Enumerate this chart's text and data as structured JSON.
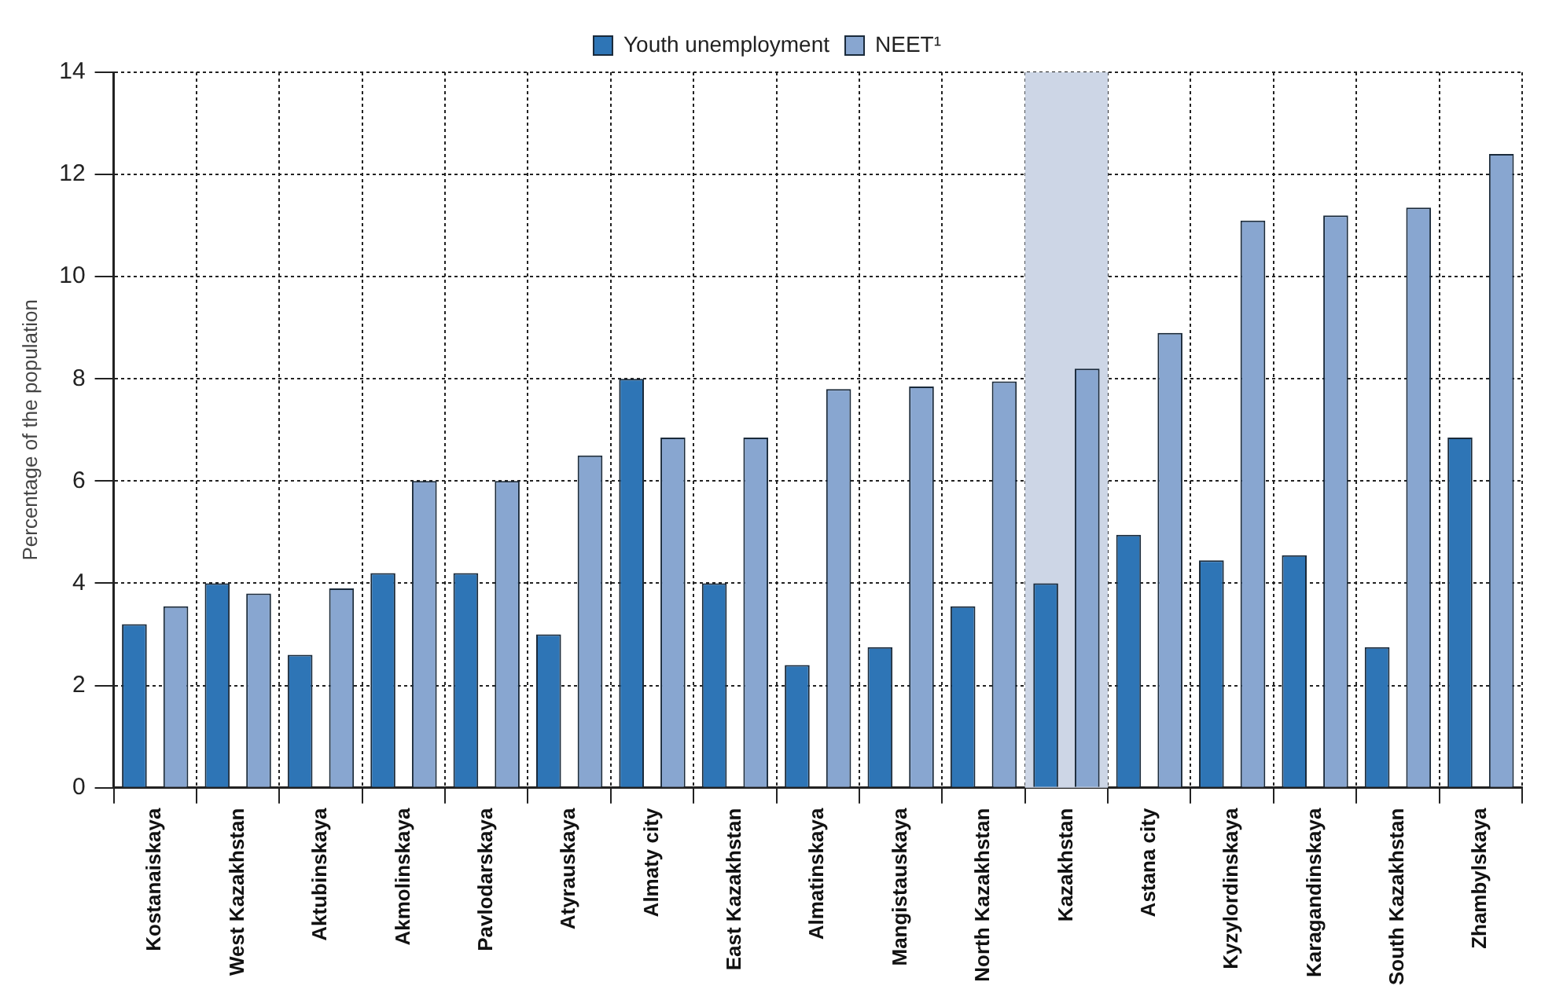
{
  "chart_data": {
    "type": "bar",
    "ylabel": "Percentage of the population",
    "categories": [
      "Kostanaiskaya",
      "West Kazakhstan",
      "Aktubinskaya",
      "Akmolinskaya",
      "Pavlodarskaya",
      "Atyrauskaya",
      "Almaty city",
      "East Kazakhstan",
      "Almatinskaya",
      "Mangistauskaya",
      "North Kazakhstan",
      "Kazakhstan",
      "Astana city",
      "Kyzylordinskaya",
      "Karagandinskaya",
      "South Kazakhstan",
      "Zhambylskaya"
    ],
    "series": [
      {
        "name": "Youth unemployment",
        "color": "#2e75b6",
        "values": [
          3.2,
          4.0,
          2.6,
          4.2,
          4.2,
          3.0,
          8.0,
          4.0,
          2.4,
          2.75,
          3.55,
          4.0,
          4.95,
          4.45,
          4.55,
          2.75,
          6.85
        ]
      },
      {
        "name": "NEET¹",
        "color": "#88a6d0",
        "values": [
          3.55,
          3.8,
          3.9,
          6.0,
          6.0,
          6.5,
          6.85,
          6.85,
          7.8,
          7.85,
          7.95,
          8.2,
          8.9,
          11.1,
          11.2,
          11.35,
          12.4
        ]
      }
    ],
    "ylim": [
      0,
      14
    ],
    "yticks": [
      0,
      2,
      4,
      6,
      8,
      10,
      12,
      14
    ],
    "grid": true,
    "legend": "top",
    "bands": [
      {
        "axis": "x",
        "from": "Kazakhstan",
        "to": "Kazakhstan",
        "color": "#cdd6e6"
      }
    ]
  }
}
